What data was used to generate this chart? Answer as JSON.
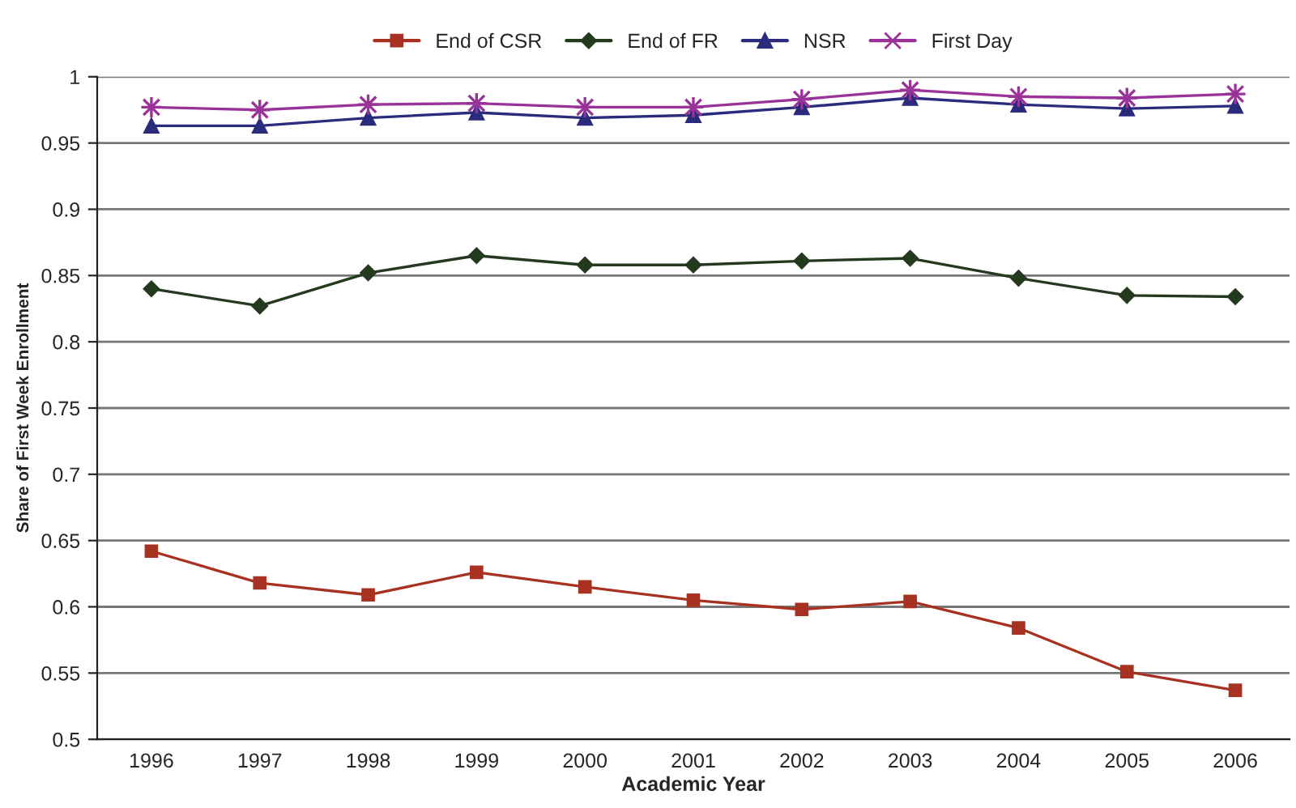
{
  "chart_data": {
    "type": "line",
    "xlabel": "Academic Year",
    "ylabel": "Share of First Week Enrollment",
    "categories": [
      "1996",
      "1997",
      "1998",
      "1999",
      "2000",
      "2001",
      "2002",
      "2003",
      "2004",
      "2005",
      "2006"
    ],
    "series": [
      {
        "name": "End of CSR",
        "color": "#a83222",
        "marker": "square",
        "values": [
          0.642,
          0.618,
          0.609,
          0.626,
          0.615,
          0.605,
          0.598,
          0.604,
          0.584,
          0.551,
          0.537
        ]
      },
      {
        "name": "End of FR",
        "color": "#243a1e",
        "marker": "diamond",
        "values": [
          0.84,
          0.827,
          0.852,
          0.865,
          0.858,
          0.858,
          0.861,
          0.863,
          0.848,
          0.835,
          0.834
        ]
      },
      {
        "name": "NSR",
        "color": "#2b2b7d",
        "marker": "triangle",
        "values": [
          0.963,
          0.963,
          0.969,
          0.973,
          0.969,
          0.971,
          0.977,
          0.984,
          0.979,
          0.976,
          0.978
        ]
      },
      {
        "name": "First Day",
        "color": "#993399",
        "marker": "cross",
        "values": [
          0.977,
          0.975,
          0.979,
          0.98,
          0.977,
          0.977,
          0.983,
          0.99,
          0.985,
          0.984,
          0.987
        ]
      }
    ],
    "ylim": [
      0.5,
      1
    ],
    "yticks": [
      0.5,
      0.55,
      0.6,
      0.65,
      0.7,
      0.75,
      0.8,
      0.85,
      0.9,
      0.95,
      1
    ],
    "grid": "y",
    "legend": "top",
    "line_style": "solid"
  }
}
